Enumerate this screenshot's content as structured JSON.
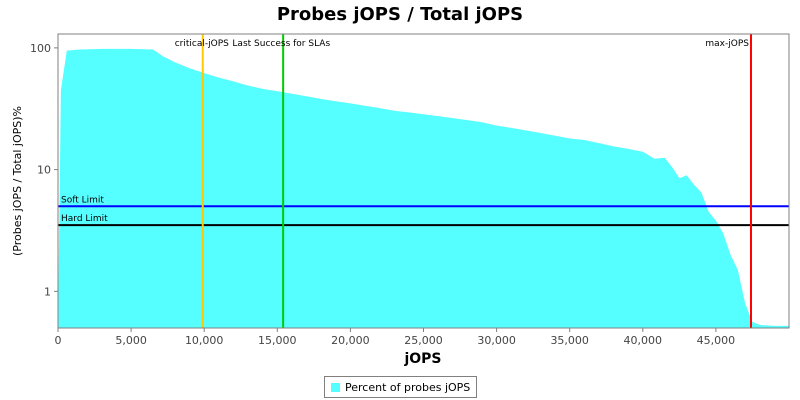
{
  "chart_data": {
    "type": "area",
    "title": "Probes jOPS / Total jOPS",
    "xlabel": "jOPS",
    "ylabel": "(Probes jOPS / Total jOPS)%",
    "xlim": [
      0,
      50000
    ],
    "ylim": [
      0.5,
      130
    ],
    "y_scale": "log",
    "x_ticks": [
      {
        "value": 0,
        "label": "0"
      },
      {
        "value": 5000,
        "label": "5,000"
      },
      {
        "value": 10000,
        "label": "10,000"
      },
      {
        "value": 15000,
        "label": "15,000"
      },
      {
        "value": 20000,
        "label": "20,000"
      },
      {
        "value": 25000,
        "label": "25,000"
      },
      {
        "value": 30000,
        "label": "30,000"
      },
      {
        "value": 35000,
        "label": "35,000"
      },
      {
        "value": 40000,
        "label": "40,000"
      },
      {
        "value": 45000,
        "label": "45,000"
      }
    ],
    "y_ticks": [
      {
        "value": 1,
        "label": "1"
      },
      {
        "value": 10,
        "label": "10"
      },
      {
        "value": 100,
        "label": "100"
      }
    ],
    "series": [
      {
        "name": "Percent of probes jOPS",
        "color": "#55ffff",
        "x": [
          0,
          200,
          600,
          1500,
          3000,
          5000,
          6500,
          7200,
          8000,
          9000,
          10000,
          11000,
          12000,
          13000,
          14000,
          15000,
          16000,
          17000,
          18000,
          19000,
          20000,
          21000,
          22000,
          23000,
          24000,
          25000,
          26000,
          27000,
          28000,
          29000,
          30000,
          31000,
          32000,
          33000,
          34000,
          35000,
          36000,
          37000,
          38000,
          39000,
          40000,
          40800,
          41500,
          42000,
          42500,
          43000,
          43500,
          44000,
          44500,
          45000,
          45500,
          46000,
          46500,
          47000,
          47500,
          48000,
          49000,
          50000
        ],
        "values": [
          0.5,
          45,
          95,
          97,
          98,
          98,
          97,
          85,
          76,
          68,
          62,
          57,
          53,
          49,
          46,
          44,
          42,
          40,
          38,
          36.5,
          35,
          33.5,
          32,
          30.5,
          29.5,
          28.5,
          27.5,
          26.5,
          25.5,
          24.5,
          23,
          22,
          21,
          20,
          19,
          18,
          17.5,
          16.5,
          15.5,
          14.8,
          14,
          12.3,
          12.5,
          10.5,
          8.5,
          9,
          7.5,
          6.5,
          4.5,
          3.8,
          3.0,
          2.0,
          1.5,
          0.8,
          0.56,
          0.53,
          0.52,
          0.52
        ]
      }
    ],
    "markers": [
      {
        "label": "critical-jOPS",
        "x": 9900,
        "color": "#ffc800"
      },
      {
        "label": "Last Success for SLAs",
        "x": 15400,
        "color": "#00cc00"
      },
      {
        "label": "max-jOPS",
        "x": 47400,
        "color": "#ff0000"
      }
    ],
    "thresholds": [
      {
        "label": "Soft Limit",
        "y": 5,
        "color": "#0000ff"
      },
      {
        "label": "Hard Limit",
        "y": 3.5,
        "color": "#000000"
      }
    ],
    "grid": false,
    "legend_position": "bottom"
  }
}
